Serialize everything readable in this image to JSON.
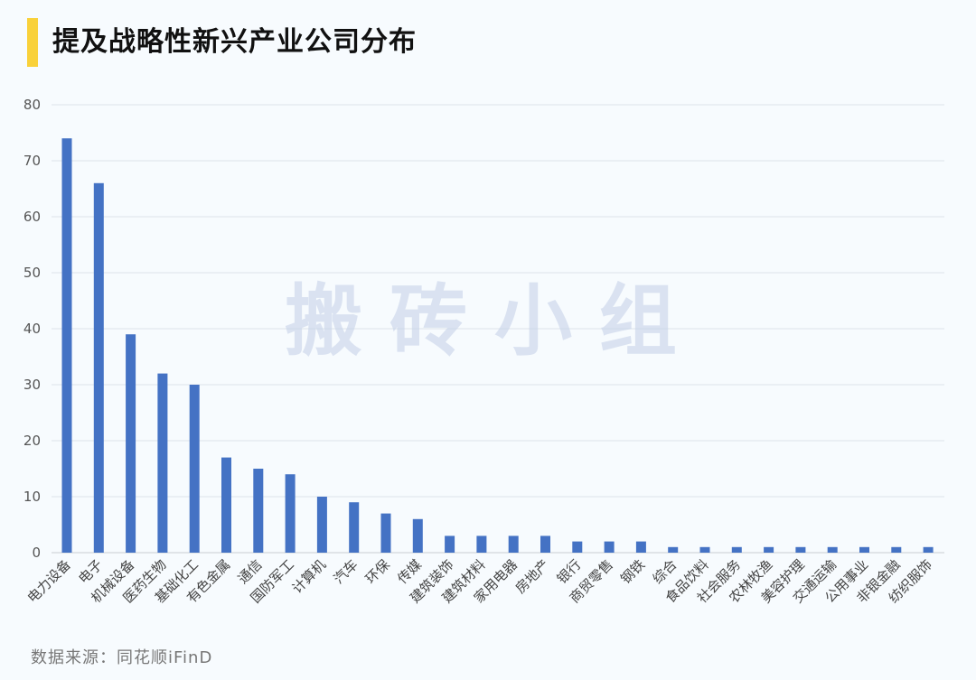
{
  "header": {
    "title": "提及战略性新兴产业公司分布",
    "accent_color": "#f9d13a"
  },
  "watermark": "搬 砖 小 组",
  "source": "数据来源：同花顺iFinD",
  "chart_data": {
    "type": "bar",
    "bar_color": "#4472c4",
    "grid": true,
    "ylim": [
      0,
      80
    ],
    "yticks": [
      0,
      10,
      20,
      30,
      40,
      50,
      60,
      70,
      80
    ],
    "categories": [
      "电力设备",
      "电子",
      "机械设备",
      "医药生物",
      "基础化工",
      "有色金属",
      "通信",
      "国防军工",
      "计算机",
      "汽车",
      "环保",
      "传媒",
      "建筑装饰",
      "建筑材料",
      "家用电器",
      "房地产",
      "银行",
      "商贸零售",
      "钢铁",
      "综合",
      "食品饮料",
      "社会服务",
      "农林牧渔",
      "美容护理",
      "交通运输",
      "公用事业",
      "非银金融",
      "纺织服饰"
    ],
    "values": [
      74,
      66,
      39,
      32,
      30,
      17,
      15,
      14,
      10,
      9,
      7,
      6,
      3,
      3,
      3,
      3,
      2,
      2,
      2,
      1,
      1,
      1,
      1,
      1,
      1,
      1,
      1,
      1
    ]
  }
}
